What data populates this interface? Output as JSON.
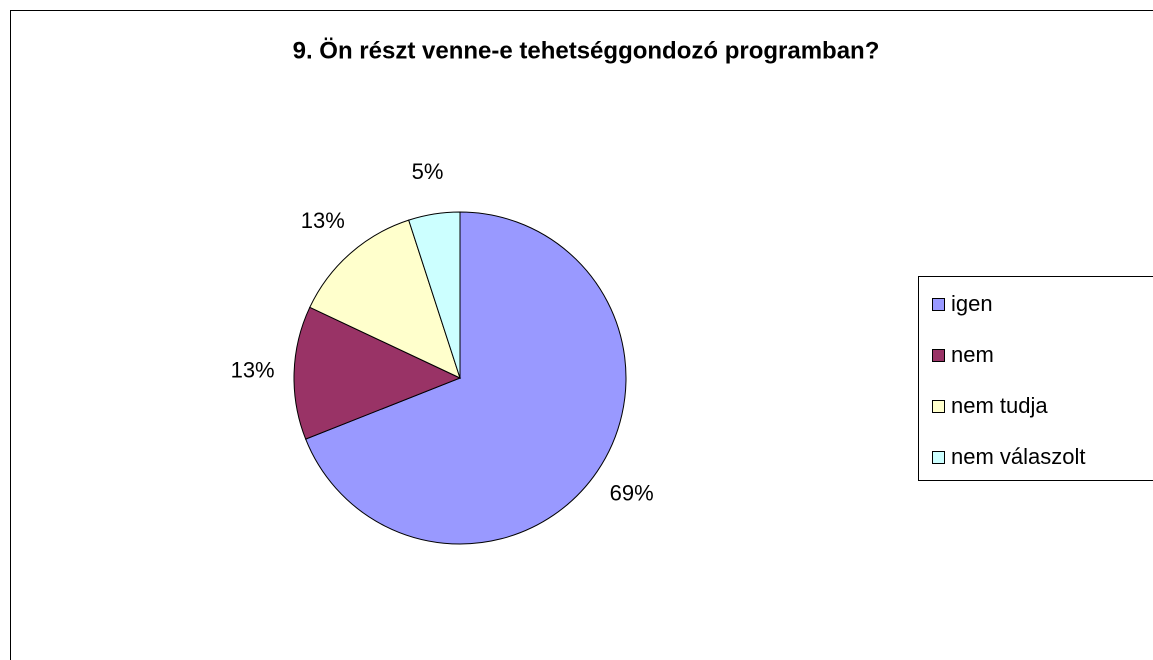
{
  "chart_data": {
    "type": "pie",
    "title": "9. Ön részt venne-e tehetséggondozó programban?",
    "categories": [
      "igen",
      "nem",
      "nem tudja",
      "nem válaszolt"
    ],
    "values": [
      69,
      13,
      13,
      5
    ],
    "value_labels": [
      "69%",
      "13%",
      "13%",
      "5%"
    ],
    "colors": [
      "#9999ff",
      "#993366",
      "#ffffcc",
      "#ccffff"
    ],
    "legend": "right"
  }
}
